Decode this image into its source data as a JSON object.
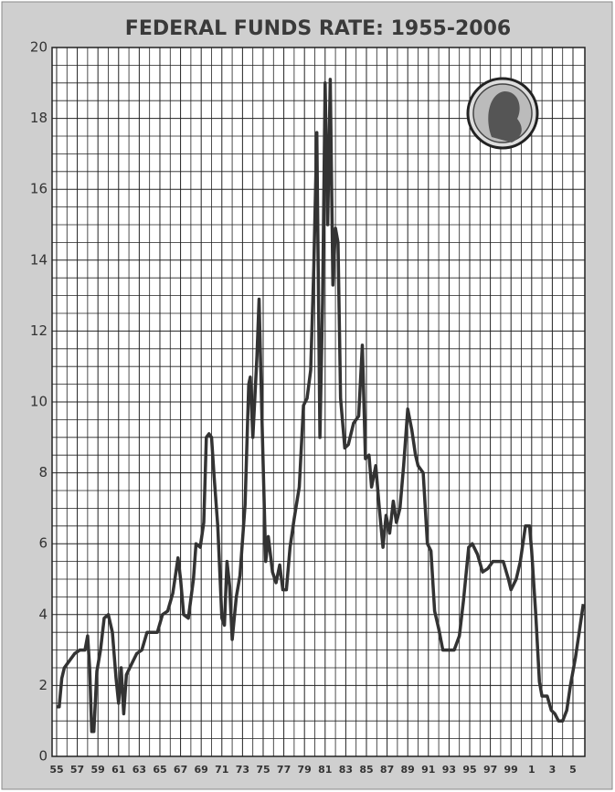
{
  "chart_data": {
    "type": "line",
    "title": "FEDERAL FUNDS RATE: 1955-2006",
    "x": [
      1955.0,
      1955.25,
      1955.5,
      1955.75,
      1956.25,
      1956.75,
      1957.25,
      1957.75,
      1958.0,
      1958.2,
      1958.4,
      1958.6,
      1958.9,
      1959.25,
      1959.6,
      1960.0,
      1960.4,
      1960.75,
      1961.0,
      1961.25,
      1961.5,
      1961.75,
      1962.25,
      1962.75,
      1963.25,
      1963.75,
      1964.25,
      1964.75,
      1965.25,
      1965.75,
      1966.25,
      1966.75,
      1967.0,
      1967.3,
      1967.75,
      1968.25,
      1968.5,
      1968.9,
      1969.25,
      1969.5,
      1969.75,
      1970.0,
      1970.25,
      1970.6,
      1971.0,
      1971.25,
      1971.5,
      1971.75,
      1972.0,
      1972.4,
      1972.75,
      1973.25,
      1973.6,
      1973.75,
      1974.0,
      1974.4,
      1974.6,
      1974.9,
      1975.25,
      1975.5,
      1975.9,
      1976.25,
      1976.6,
      1976.9,
      1977.25,
      1977.6,
      1978.0,
      1978.5,
      1978.9,
      1979.25,
      1979.6,
      1979.9,
      1980.2,
      1980.5,
      1980.75,
      1981.0,
      1981.25,
      1981.5,
      1981.75,
      1982.0,
      1982.25,
      1982.5,
      1982.9,
      1983.25,
      1983.75,
      1984.25,
      1984.6,
      1984.9,
      1985.25,
      1985.5,
      1985.9,
      1986.25,
      1986.6,
      1986.9,
      1987.25,
      1987.6,
      1987.9,
      1988.25,
      1988.6,
      1989.0,
      1989.4,
      1989.75,
      1990.0,
      1990.5,
      1990.9,
      1991.25,
      1991.6,
      1992.0,
      1992.4,
      1992.75,
      1993.5,
      1994.0,
      1994.4,
      1994.9,
      1995.25,
      1995.75,
      1996.25,
      1996.75,
      1997.25,
      1997.75,
      1998.25,
      1998.75,
      1999.0,
      1999.5,
      1999.9,
      2000.4,
      2000.8,
      2001.0,
      2001.4,
      2001.75,
      2002.0,
      2002.5,
      2002.9,
      2003.25,
      2003.6,
      2004.0,
      2004.4,
      2004.75,
      2005.25,
      2005.6,
      2006.0
    ],
    "series": [
      {
        "name": "Federal funds rate",
        "color": "#333333",
        "values": [
          1.4,
          1.4,
          2.2,
          2.5,
          2.7,
          2.9,
          3.0,
          3.0,
          3.4,
          2.5,
          0.7,
          0.7,
          2.4,
          3.0,
          3.9,
          4.0,
          3.5,
          2.2,
          1.5,
          2.5,
          1.2,
          2.3,
          2.6,
          2.9,
          3.0,
          3.5,
          3.5,
          3.5,
          4.0,
          4.1,
          4.6,
          5.6,
          5.0,
          4.0,
          3.9,
          5.0,
          6.0,
          5.9,
          6.6,
          9.0,
          9.1,
          9.0,
          7.9,
          6.5,
          3.9,
          3.7,
          5.5,
          4.8,
          3.3,
          4.5,
          5.1,
          7.1,
          10.5,
          10.7,
          9.0,
          11.3,
          12.9,
          9.3,
          5.5,
          6.2,
          5.2,
          4.9,
          5.4,
          4.7,
          4.7,
          5.9,
          6.7,
          7.6,
          9.9,
          10.1,
          10.9,
          13.8,
          17.6,
          9.0,
          12.8,
          19.0,
          15.0,
          19.1,
          13.3,
          14.9,
          14.5,
          10.1,
          8.7,
          8.8,
          9.4,
          9.6,
          11.6,
          8.4,
          8.5,
          7.6,
          8.2,
          7.0,
          5.9,
          6.8,
          6.3,
          7.2,
          6.6,
          7.0,
          8.2,
          9.8,
          9.2,
          8.5,
          8.2,
          8.0,
          6.0,
          5.8,
          4.1,
          3.6,
          3.0,
          3.0,
          3.0,
          3.4,
          4.4,
          5.9,
          6.0,
          5.7,
          5.2,
          5.3,
          5.5,
          5.5,
          5.5,
          5.0,
          4.7,
          5.0,
          5.5,
          6.5,
          6.5,
          5.8,
          4.0,
          2.1,
          1.7,
          1.7,
          1.3,
          1.2,
          1.0,
          1.0,
          1.3,
          2.0,
          2.8,
          3.5,
          4.3
        ]
      }
    ],
    "xlim": [
      1954.56,
      2006.15
    ],
    "xticks": [
      {
        "value": 1955,
        "label": "55"
      },
      {
        "value": 1957,
        "label": "57"
      },
      {
        "value": 1959,
        "label": "59"
      },
      {
        "value": 1961,
        "label": "61"
      },
      {
        "value": 1963,
        "label": "63"
      },
      {
        "value": 1965,
        "label": "65"
      },
      {
        "value": 1967,
        "label": "67"
      },
      {
        "value": 1969,
        "label": "69"
      },
      {
        "value": 1971,
        "label": "71"
      },
      {
        "value": 1973,
        "label": "73"
      },
      {
        "value": 1975,
        "label": "75"
      },
      {
        "value": 1977,
        "label": "77"
      },
      {
        "value": 1979,
        "label": "79"
      },
      {
        "value": 1981,
        "label": "81"
      },
      {
        "value": 1983,
        "label": "83"
      },
      {
        "value": 1985,
        "label": "85"
      },
      {
        "value": 1987,
        "label": "87"
      },
      {
        "value": 1989,
        "label": "89"
      },
      {
        "value": 1991,
        "label": "91"
      },
      {
        "value": 1993,
        "label": "93"
      },
      {
        "value": 1995,
        "label": "95"
      },
      {
        "value": 1997,
        "label": "97"
      },
      {
        "value": 1999,
        "label": "99"
      },
      {
        "value": 2001,
        "label": "1"
      },
      {
        "value": 2003,
        "label": "3"
      },
      {
        "value": 2005,
        "label": "5"
      }
    ],
    "ylim": [
      0,
      20
    ],
    "yticks": [
      0,
      2,
      4,
      6,
      8,
      10,
      12,
      14,
      16,
      18,
      20
    ],
    "grid": true
  }
}
